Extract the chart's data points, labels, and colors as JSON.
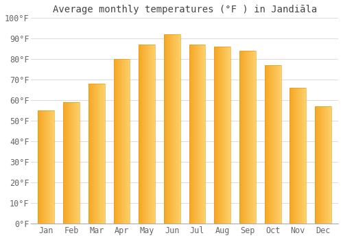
{
  "title": "Average monthly temperatures (°F ) in Jandiāla",
  "months": [
    "Jan",
    "Feb",
    "Mar",
    "Apr",
    "May",
    "Jun",
    "Jul",
    "Aug",
    "Sep",
    "Oct",
    "Nov",
    "Dec"
  ],
  "values": [
    55,
    59,
    68,
    80,
    87,
    92,
    87,
    86,
    84,
    77,
    66,
    57
  ],
  "bar_color_left": "#F5A623",
  "bar_color_right": "#FDD06A",
  "background_color": "#ffffff",
  "ylim": [
    0,
    100
  ],
  "yticks": [
    0,
    10,
    20,
    30,
    40,
    50,
    60,
    70,
    80,
    90,
    100
  ],
  "ytick_labels": [
    "0°F",
    "10°F",
    "20°F",
    "30°F",
    "40°F",
    "50°F",
    "60°F",
    "70°F",
    "80°F",
    "90°F",
    "100°F"
  ],
  "title_fontsize": 10,
  "tick_fontsize": 8.5,
  "grid_color": "#dddddd",
  "bar_width": 0.65
}
